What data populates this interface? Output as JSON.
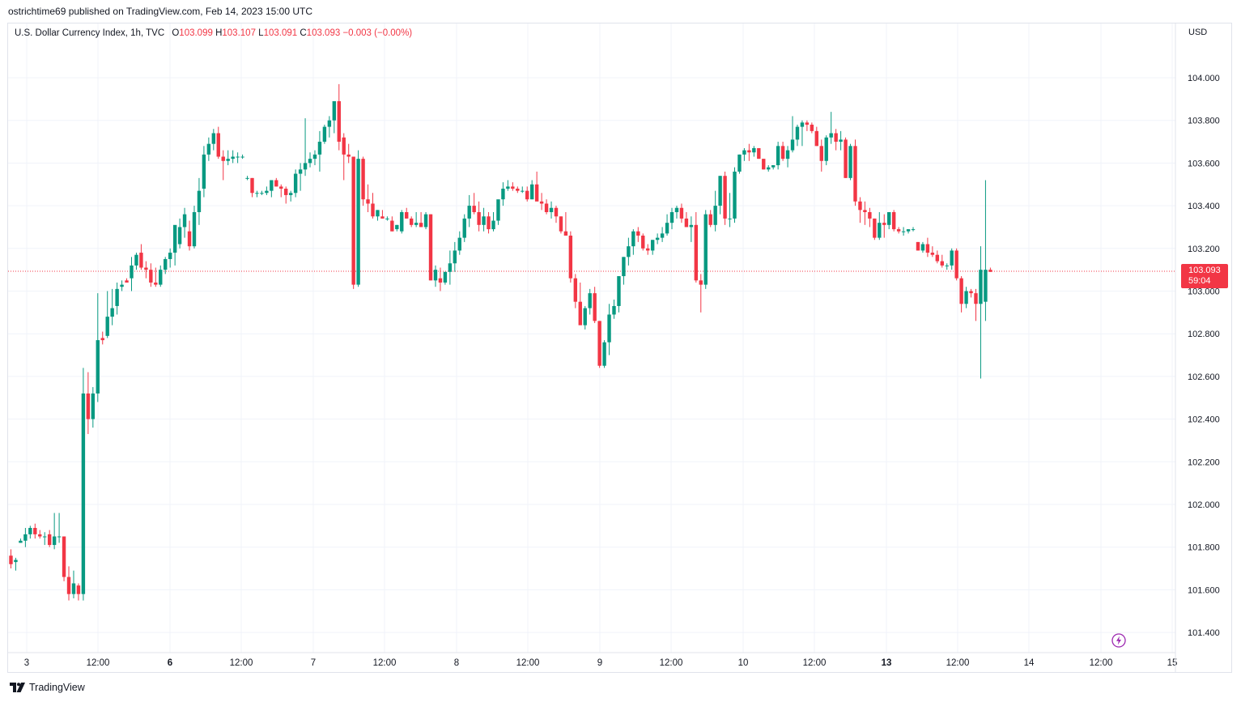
{
  "header": {
    "published_text": "ostrichtime69 published on TradingView.com, Feb 14, 2023 15:00 UTC"
  },
  "legend": {
    "symbol": "U.S. Dollar Currency Index, 1h, TVC",
    "open_label": "O",
    "open": "103.099",
    "high_label": "H",
    "high": "103.107",
    "low_label": "L",
    "low": "103.091",
    "close_label": "C",
    "close": "103.093",
    "change": "−0.003 (−0.00%)"
  },
  "axis": {
    "currency": "USD"
  },
  "price_badge": {
    "price": "103.093",
    "countdown": "59:04"
  },
  "footer": {
    "brand": "TradingView"
  },
  "colors": {
    "up": "#089981",
    "down": "#f23645",
    "grid": "#f0f3fa",
    "text": "#131722"
  },
  "icons": [
    "tradingview-logo-icon",
    "lightning-icon"
  ],
  "chart_data": {
    "type": "candlestick",
    "interval": "1h",
    "ylim": [
      101.3,
      104.25
    ],
    "y_ticks": [
      101.4,
      101.6,
      101.8,
      102.0,
      102.2,
      102.4,
      102.6,
      102.8,
      103.0,
      103.2,
      103.4,
      103.6,
      103.8,
      104.0
    ],
    "x_ticks": [
      "3",
      "12:00",
      "6",
      "12:00",
      "7",
      "12:00",
      "8",
      "12:00",
      "9",
      "12:00",
      "10",
      "12:00",
      "13",
      "12:00",
      "14",
      "12:00",
      "15"
    ],
    "bold_x_ticks": [
      "6",
      "13"
    ],
    "last_price": 103.093,
    "candles": [
      [
        101.76,
        101.79,
        101.7,
        101.72
      ],
      [
        101.73,
        101.75,
        101.69,
        101.74
      ],
      [
        101.82,
        101.84,
        101.82,
        101.83
      ],
      [
        101.83,
        101.89,
        101.8,
        101.86
      ],
      [
        101.86,
        101.9,
        101.84,
        101.89
      ],
      [
        101.89,
        101.91,
        101.84,
        101.86
      ],
      [
        101.86,
        101.88,
        101.84,
        101.85
      ],
      [
        101.85,
        101.87,
        101.81,
        101.85
      ],
      [
        101.86,
        101.88,
        101.8,
        101.81
      ],
      [
        101.81,
        101.96,
        101.79,
        101.85
      ],
      [
        101.85,
        101.96,
        101.82,
        101.85
      ],
      [
        101.85,
        101.85,
        101.64,
        101.66
      ],
      [
        101.66,
        101.71,
        101.55,
        101.58
      ],
      [
        101.58,
        101.69,
        101.56,
        101.63
      ],
      [
        101.62,
        101.63,
        101.55,
        101.58
      ],
      [
        101.58,
        102.64,
        101.55,
        102.52
      ],
      [
        102.52,
        102.62,
        102.33,
        102.4
      ],
      [
        102.4,
        102.55,
        102.36,
        102.52
      ],
      [
        102.52,
        102.99,
        102.48,
        102.77
      ],
      [
        102.78,
        102.81,
        102.75,
        102.77
      ],
      [
        102.79,
        103.0,
        102.78,
        102.88
      ],
      [
        102.88,
        103.01,
        102.84,
        102.92
      ],
      [
        102.93,
        103.04,
        102.89,
        103.01
      ],
      [
        103.02,
        103.05,
        103.0,
        103.03
      ],
      [
        103.05,
        103.06,
        103.04,
        103.04
      ],
      [
        103.06,
        103.16,
        103.0,
        103.12
      ],
      [
        103.12,
        103.18,
        103.1,
        103.17
      ],
      [
        103.18,
        103.22,
        103.1,
        103.11
      ],
      [
        103.11,
        103.14,
        103.06,
        103.1
      ],
      [
        103.1,
        103.13,
        103.02,
        103.04
      ],
      [
        103.04,
        103.11,
        103.02,
        103.03
      ],
      [
        103.03,
        103.12,
        103.02,
        103.1
      ],
      [
        103.1,
        103.16,
        103.08,
        103.15
      ],
      [
        103.15,
        103.2,
        103.11,
        103.18
      ],
      [
        103.18,
        103.3,
        103.12,
        103.31
      ],
      [
        103.22,
        103.34,
        103.2,
        103.3
      ],
      [
        103.3,
        103.39,
        103.25,
        103.36
      ],
      [
        103.28,
        103.33,
        103.19,
        103.21
      ],
      [
        103.21,
        103.4,
        103.2,
        103.37
      ],
      [
        103.37,
        103.53,
        103.31,
        103.47
      ],
      [
        103.48,
        103.68,
        103.44,
        103.64
      ],
      [
        103.64,
        103.72,
        103.61,
        103.69
      ],
      [
        103.69,
        103.76,
        103.66,
        103.74
      ],
      [
        103.74,
        103.77,
        103.62,
        103.63
      ],
      [
        103.63,
        103.66,
        103.52,
        103.61
      ],
      [
        103.61,
        103.66,
        103.59,
        103.62
      ],
      [
        103.62,
        103.66,
        103.6,
        103.63
      ],
      [
        103.63,
        103.65,
        103.6,
        103.63
      ],
      [
        103.63,
        103.64,
        103.62,
        103.63
      ],
      [
        103.53,
        103.54,
        103.52,
        103.53
      ],
      [
        103.53,
        103.53,
        103.44,
        103.46
      ],
      [
        103.46,
        103.47,
        103.44,
        103.46
      ],
      [
        103.46,
        103.47,
        103.45,
        103.46
      ],
      [
        103.46,
        103.49,
        103.45,
        103.47
      ],
      [
        103.47,
        103.52,
        103.44,
        103.52
      ],
      [
        103.52,
        103.53,
        103.49,
        103.49
      ],
      [
        103.49,
        103.5,
        103.44,
        103.48
      ],
      [
        103.48,
        103.49,
        103.41,
        103.45
      ],
      [
        103.45,
        103.47,
        103.42,
        103.46
      ],
      [
        103.46,
        103.57,
        103.44,
        103.55
      ],
      [
        103.55,
        103.6,
        103.47,
        103.57
      ],
      [
        103.57,
        103.81,
        103.54,
        103.6
      ],
      [
        103.6,
        103.65,
        103.58,
        103.62
      ],
      [
        103.62,
        103.66,
        103.59,
        103.64
      ],
      [
        103.64,
        103.75,
        103.56,
        103.7
      ],
      [
        103.7,
        103.78,
        103.69,
        103.77
      ],
      [
        103.77,
        103.82,
        103.72,
        103.8
      ],
      [
        103.8,
        103.89,
        103.74,
        103.89
      ],
      [
        103.89,
        103.97,
        103.66,
        103.7
      ],
      [
        103.72,
        103.74,
        103.52,
        103.64
      ],
      [
        103.64,
        103.69,
        103.6,
        103.63
      ],
      [
        103.63,
        103.63,
        103.01,
        103.03
      ],
      [
        103.03,
        103.66,
        103.02,
        103.62
      ],
      [
        103.62,
        103.63,
        103.4,
        103.43
      ],
      [
        103.43,
        103.5,
        103.37,
        103.41
      ],
      [
        103.41,
        103.46,
        103.34,
        103.35
      ],
      [
        103.35,
        103.38,
        103.33,
        103.38
      ],
      [
        103.35,
        103.38,
        103.34,
        103.34
      ],
      [
        103.34,
        103.35,
        103.33,
        103.34
      ],
      [
        103.33,
        103.35,
        103.28,
        103.28
      ],
      [
        103.29,
        103.31,
        103.28,
        103.31
      ],
      [
        103.28,
        103.38,
        103.27,
        103.37
      ],
      [
        103.37,
        103.39,
        103.34,
        103.34
      ],
      [
        103.34,
        103.35,
        103.3,
        103.31
      ],
      [
        103.31,
        103.37,
        103.3,
        103.32
      ],
      [
        103.32,
        103.37,
        103.3,
        103.3
      ],
      [
        103.3,
        103.37,
        103.29,
        103.36
      ],
      [
        103.36,
        103.36,
        103.05,
        103.05
      ],
      [
        103.05,
        103.12,
        103.02,
        103.1
      ],
      [
        103.06,
        103.11,
        103.0,
        103.04
      ],
      [
        103.04,
        103.09,
        103.03,
        103.09
      ],
      [
        103.09,
        103.19,
        103.03,
        103.13
      ],
      [
        103.13,
        103.23,
        103.09,
        103.19
      ],
      [
        103.19,
        103.28,
        103.17,
        103.25
      ],
      [
        103.25,
        103.36,
        103.23,
        103.34
      ],
      [
        103.34,
        103.45,
        103.3,
        103.4
      ],
      [
        103.4,
        103.46,
        103.36,
        103.37
      ],
      [
        103.37,
        103.42,
        103.28,
        103.31
      ],
      [
        103.31,
        103.39,
        103.28,
        103.35
      ],
      [
        103.35,
        103.37,
        103.27,
        103.29
      ],
      [
        103.29,
        103.37,
        103.28,
        103.33
      ],
      [
        103.33,
        103.42,
        103.31,
        103.43
      ],
      [
        103.43,
        103.51,
        103.4,
        103.48
      ],
      [
        103.48,
        103.52,
        103.47,
        103.49
      ],
      [
        103.49,
        103.51,
        103.47,
        103.48
      ],
      [
        103.48,
        103.49,
        103.46,
        103.47
      ],
      [
        103.47,
        103.49,
        103.46,
        103.47
      ],
      [
        103.47,
        103.49,
        103.42,
        103.43
      ],
      [
        103.43,
        103.52,
        103.43,
        103.5
      ],
      [
        103.5,
        103.56,
        103.43,
        103.42
      ],
      [
        103.42,
        103.46,
        103.38,
        103.41
      ],
      [
        103.41,
        103.43,
        103.36,
        103.37
      ],
      [
        103.37,
        103.42,
        103.34,
        103.39
      ],
      [
        103.39,
        103.4,
        103.32,
        103.35
      ],
      [
        103.35,
        103.35,
        103.27,
        103.28
      ],
      [
        103.28,
        103.37,
        103.26,
        103.26
      ],
      [
        103.26,
        103.28,
        103.04,
        103.06
      ],
      [
        103.06,
        103.08,
        102.92,
        102.95
      ],
      [
        102.95,
        103.04,
        102.85,
        102.84
      ],
      [
        102.84,
        102.93,
        102.82,
        102.92
      ],
      [
        102.92,
        103.01,
        102.89,
        102.99
      ],
      [
        102.99,
        103.02,
        102.85,
        102.86
      ],
      [
        102.86,
        102.86,
        102.64,
        102.65
      ],
      [
        102.65,
        102.77,
        102.64,
        102.76
      ],
      [
        102.76,
        102.94,
        102.7,
        102.89
      ],
      [
        102.89,
        102.96,
        102.87,
        102.93
      ],
      [
        102.93,
        103.07,
        102.9,
        103.07
      ],
      [
        103.07,
        103.16,
        103.03,
        103.16
      ],
      [
        103.16,
        103.25,
        103.12,
        103.21
      ],
      [
        103.21,
        103.29,
        103.17,
        103.28
      ],
      [
        103.28,
        103.3,
        103.23,
        103.26
      ],
      [
        103.26,
        103.27,
        103.19,
        103.2
      ],
      [
        103.2,
        103.22,
        103.17,
        103.19
      ],
      [
        103.19,
        103.24,
        103.17,
        103.24
      ],
      [
        103.24,
        103.27,
        103.22,
        103.25
      ],
      [
        103.25,
        103.3,
        103.23,
        103.27
      ],
      [
        103.27,
        103.36,
        103.26,
        103.32
      ],
      [
        103.32,
        103.39,
        103.29,
        103.37
      ],
      [
        103.37,
        103.4,
        103.34,
        103.39
      ],
      [
        103.39,
        103.41,
        103.32,
        103.34
      ],
      [
        103.34,
        103.37,
        103.3,
        103.3
      ],
      [
        103.3,
        103.35,
        103.23,
        103.31
      ],
      [
        103.31,
        103.37,
        103.04,
        103.05
      ],
      [
        103.05,
        103.08,
        102.9,
        103.03
      ],
      [
        103.03,
        103.38,
        103.01,
        103.36
      ],
      [
        103.36,
        103.38,
        103.3,
        103.31
      ],
      [
        103.31,
        103.47,
        103.28,
        103.4
      ],
      [
        103.4,
        103.54,
        103.36,
        103.54
      ],
      [
        103.54,
        103.56,
        103.31,
        103.34
      ],
      [
        103.34,
        103.46,
        103.3,
        103.34
      ],
      [
        103.34,
        103.58,
        103.32,
        103.56
      ],
      [
        103.56,
        103.64,
        103.55,
        103.64
      ],
      [
        103.64,
        103.67,
        103.61,
        103.66
      ],
      [
        103.66,
        103.69,
        103.61,
        103.65
      ],
      [
        103.65,
        103.68,
        103.63,
        103.67
      ],
      [
        103.67,
        103.67,
        103.62,
        103.62
      ],
      [
        103.62,
        103.62,
        103.57,
        103.57
      ],
      [
        103.57,
        103.59,
        103.56,
        103.58
      ],
      [
        103.58,
        103.59,
        103.57,
        103.59
      ],
      [
        103.59,
        103.7,
        103.57,
        103.68
      ],
      [
        103.68,
        103.7,
        103.61,
        103.62
      ],
      [
        103.62,
        103.68,
        103.58,
        103.66
      ],
      [
        103.66,
        103.82,
        103.65,
        103.71
      ],
      [
        103.71,
        103.78,
        103.68,
        103.77
      ],
      [
        103.77,
        103.8,
        103.68,
        103.79
      ],
      [
        103.79,
        103.8,
        103.75,
        103.78
      ],
      [
        103.78,
        103.79,
        103.74,
        103.75
      ],
      [
        103.75,
        103.77,
        103.68,
        103.68
      ],
      [
        103.68,
        103.71,
        103.56,
        103.61
      ],
      [
        103.61,
        103.73,
        103.59,
        103.72
      ],
      [
        103.72,
        103.84,
        103.69,
        103.74
      ],
      [
        103.74,
        103.76,
        103.66,
        103.7
      ],
      [
        103.7,
        103.75,
        103.66,
        103.71
      ],
      [
        103.71,
        103.72,
        103.53,
        103.53
      ],
      [
        103.53,
        103.69,
        103.52,
        103.68
      ],
      [
        103.68,
        103.71,
        103.4,
        103.42
      ],
      [
        103.42,
        103.44,
        103.32,
        103.38
      ],
      [
        103.38,
        103.42,
        103.31,
        103.37
      ],
      [
        103.37,
        103.39,
        103.3,
        103.34
      ],
      [
        103.34,
        103.34,
        103.24,
        103.25
      ],
      [
        103.25,
        103.37,
        103.24,
        103.32
      ],
      [
        103.32,
        103.36,
        103.25,
        103.31
      ],
      [
        103.31,
        103.36,
        103.29,
        103.37
      ],
      [
        103.37,
        103.38,
        103.28,
        103.29
      ],
      [
        103.29,
        103.3,
        103.27,
        103.28
      ],
      [
        103.28,
        103.3,
        103.26,
        103.28
      ],
      [
        103.28,
        103.29,
        103.27,
        103.29
      ],
      [
        103.29,
        103.3,
        103.28,
        103.29
      ],
      [
        103.23,
        103.23,
        103.19,
        103.19
      ],
      [
        103.19,
        103.23,
        103.18,
        103.22
      ],
      [
        103.22,
        103.25,
        103.16,
        103.18
      ],
      [
        103.18,
        103.21,
        103.16,
        103.17
      ],
      [
        103.17,
        103.19,
        103.13,
        103.14
      ],
      [
        103.14,
        103.17,
        103.11,
        103.12
      ],
      [
        103.12,
        103.13,
        103.1,
        103.12
      ],
      [
        103.12,
        103.2,
        103.1,
        103.19
      ],
      [
        103.19,
        103.2,
        103.05,
        103.06
      ],
      [
        103.06,
        103.07,
        102.9,
        102.94
      ],
      [
        102.94,
        103.02,
        102.92,
        103.0
      ],
      [
        103.0,
        103.01,
        102.97,
        102.99
      ],
      [
        102.99,
        103.01,
        102.86,
        102.94
      ],
      [
        102.94,
        103.21,
        102.59,
        103.1
      ],
      [
        102.95,
        103.52,
        102.86,
        103.1
      ],
      [
        103.1,
        103.11,
        103.09,
        103.09
      ]
    ]
  }
}
